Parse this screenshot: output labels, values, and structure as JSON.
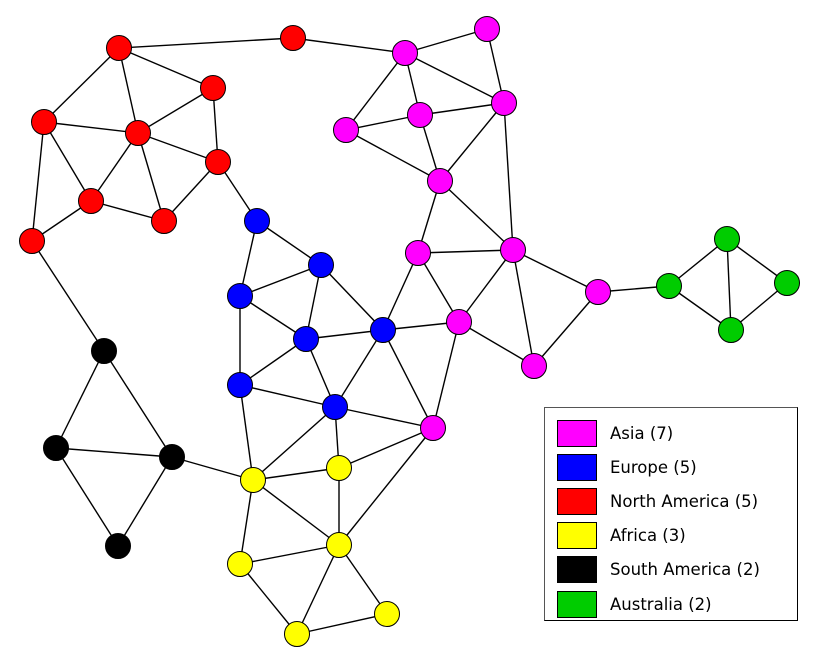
{
  "legend": {
    "items": [
      {
        "label": "Asia (7)",
        "color": "#ff00ff"
      },
      {
        "label": "Europe (5)",
        "color": "#0000ff"
      },
      {
        "label": "North America (5)",
        "color": "#ff0000"
      },
      {
        "label": "Africa (3)",
        "color": "#ffff00"
      },
      {
        "label": "South America (2)",
        "color": "#000000"
      },
      {
        "label": "Australia (2)",
        "color": "#00cc00"
      }
    ]
  },
  "colors": {
    "asia": "#ff00ff",
    "europe": "#0000ff",
    "north_america": "#ff0000",
    "africa": "#ffff00",
    "south_america": "#000000",
    "australia": "#00cc00"
  }
}
